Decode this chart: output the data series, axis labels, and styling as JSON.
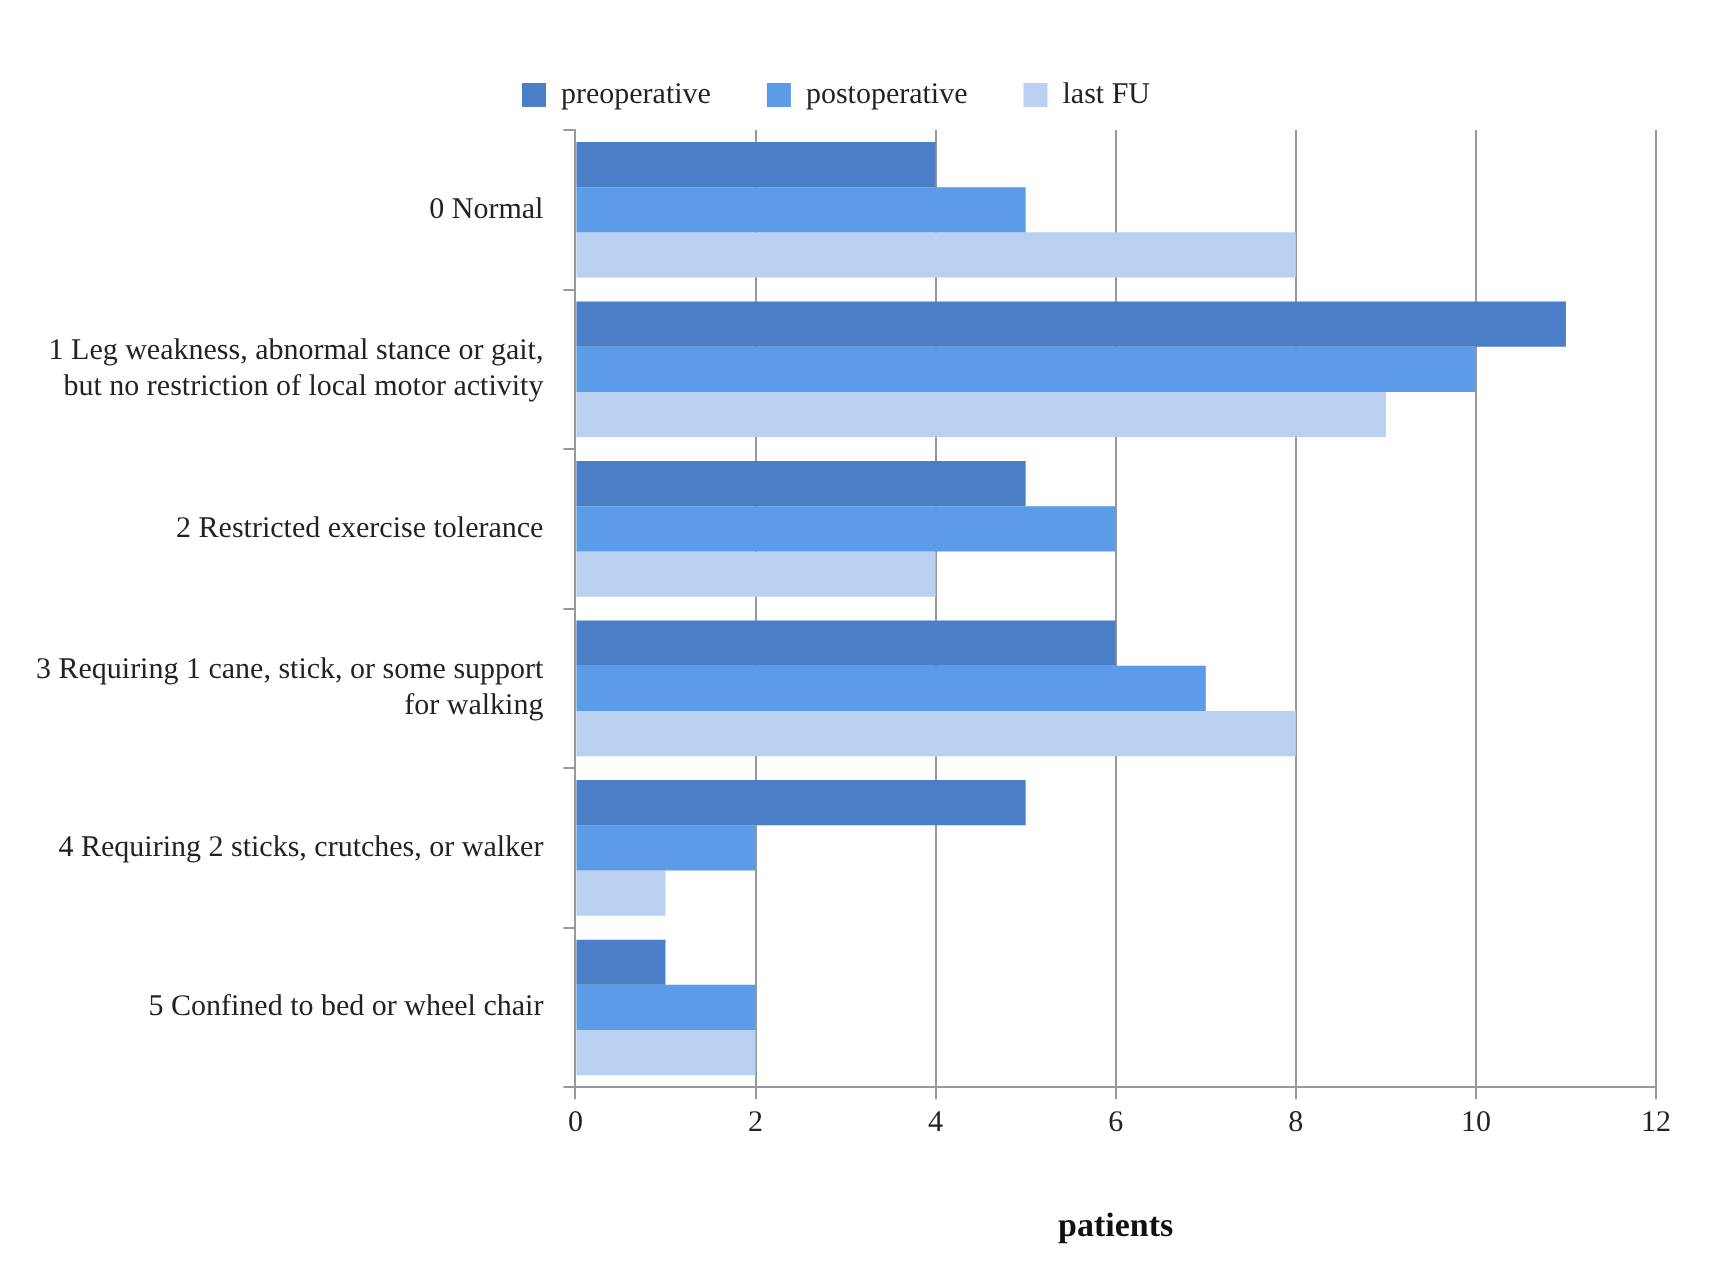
{
  "chart_data": {
    "type": "bar",
    "orientation": "horizontal",
    "xlabel": "patients",
    "categories": [
      "0 Normal",
      "1 Leg weakness, abnormal stance or gait, but no restriction of local motor activity",
      "2 Restricted exercise tolerance",
      "3 Requiring 1 cane, stick, or some support for walking",
      "4 Requiring 2 sticks, crutches, or walker",
      "5 Confined to bed or wheel chair"
    ],
    "series": [
      {
        "name": "preoperative",
        "color": "#4a7fc8",
        "values": [
          4,
          11,
          5,
          6,
          5,
          1
        ]
      },
      {
        "name": "postoperative",
        "color": "#5b9be8",
        "values": [
          5,
          10,
          6,
          7,
          2,
          2
        ]
      },
      {
        "name": "last FU",
        "color": "#b9d0f0",
        "values": [
          8,
          9,
          4,
          8,
          1,
          2
        ]
      }
    ],
    "xlim": [
      0,
      12
    ],
    "xticks": [
      0,
      2,
      4,
      6,
      8,
      10,
      12
    ],
    "grid": "x",
    "legend": "top"
  }
}
